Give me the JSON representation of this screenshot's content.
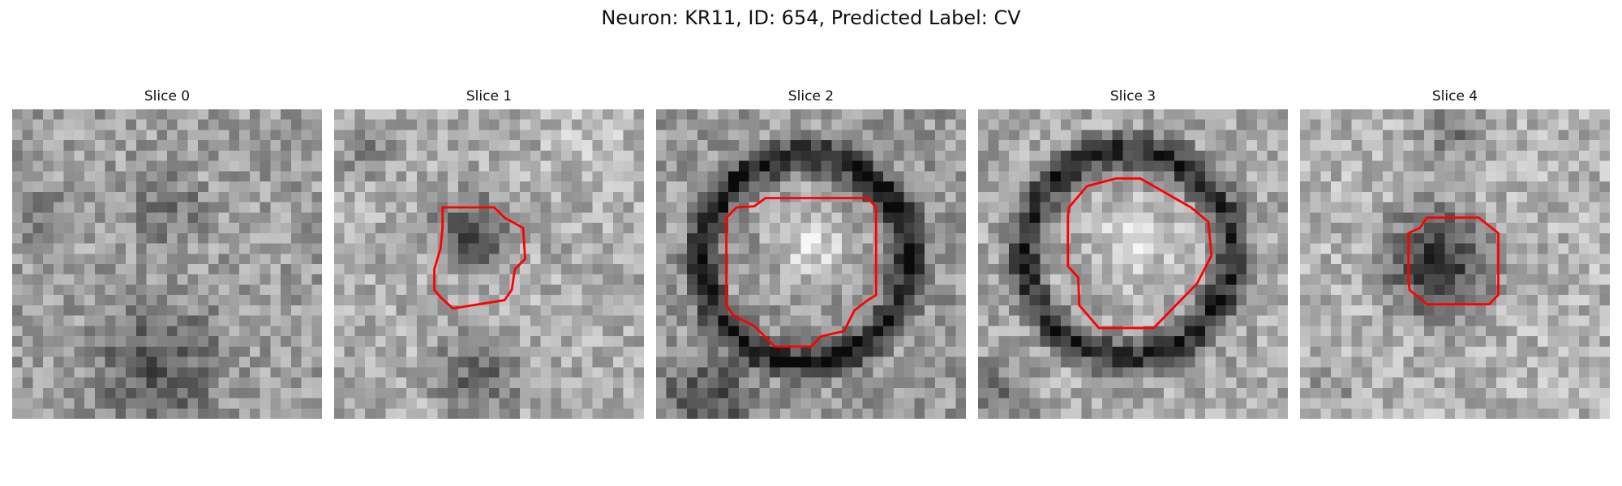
{
  "figure": {
    "title": "Neuron: KR11, ID: 654, Predicted Label: CV",
    "contour_color": "#ff0000"
  },
  "panels": [
    {
      "title": "Slice 0",
      "has_contour": false
    },
    {
      "title": "Slice 1",
      "has_contour": true
    },
    {
      "title": "Slice 2",
      "has_contour": true
    },
    {
      "title": "Slice 3",
      "has_contour": true
    },
    {
      "title": "Slice 4",
      "has_contour": true
    }
  ]
}
